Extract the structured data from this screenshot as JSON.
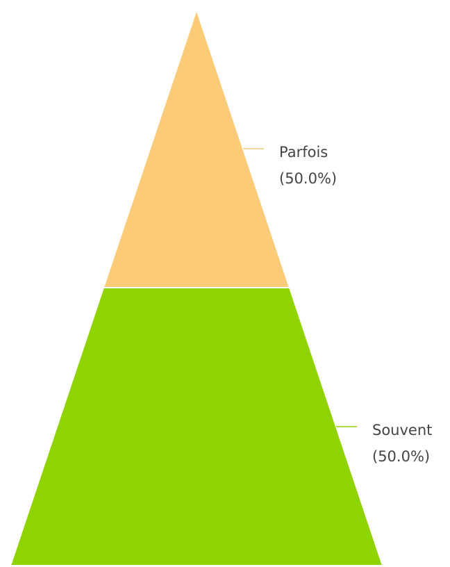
{
  "chart_data": {
    "type": "pyramid",
    "categories": [
      "Parfois",
      "Souvent"
    ],
    "values": [
      50,
      50
    ],
    "value_labels": [
      "(50.0%)",
      "(50.0%)"
    ],
    "colors": [
      "#fccb78",
      "#8fd400"
    ]
  }
}
